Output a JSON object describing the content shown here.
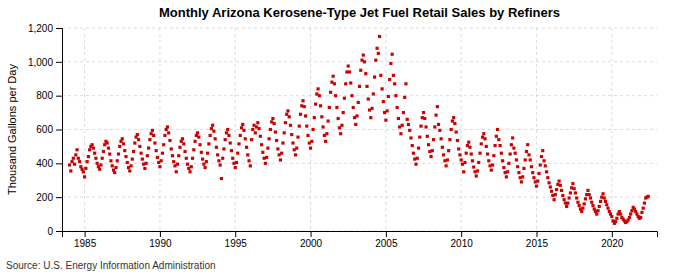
{
  "chart_data": {
    "type": "scatter",
    "title": "Monthly Arizona Kerosene-Type Jet Fuel Retail Sales by Refiners",
    "ylabel": "Thousand Gallons per Day",
    "annotations": [
      "Source: U.S. Energy Information Administration"
    ],
    "color": "#CC0000",
    "marker": "square",
    "grid": true,
    "xlim": [
      1983.5,
      2023.0
    ],
    "ylim": [
      0,
      1200
    ],
    "xticks": [
      1985,
      1990,
      1995,
      2000,
      2005,
      2010,
      2015,
      2020
    ],
    "yticks": [
      0,
      200,
      400,
      600,
      800,
      {
        "value": 1000,
        "label": "1,000"
      },
      {
        "value": 1200,
        "label": "1,200"
      }
    ],
    "x": [
      1984.0,
      1984.083,
      1984.167,
      1984.25,
      1984.333,
      1984.417,
      1984.5,
      1984.583,
      1984.667,
      1984.75,
      1984.833,
      1984.917,
      1985.0,
      1985.083,
      1985.167,
      1985.25,
      1985.333,
      1985.417,
      1985.5,
      1985.583,
      1985.667,
      1985.75,
      1985.833,
      1985.917,
      1986.0,
      1986.083,
      1986.167,
      1986.25,
      1986.333,
      1986.417,
      1986.5,
      1986.583,
      1986.667,
      1986.75,
      1986.833,
      1986.917,
      1987.0,
      1987.083,
      1987.167,
      1987.25,
      1987.333,
      1987.417,
      1987.5,
      1987.583,
      1987.667,
      1987.75,
      1987.833,
      1987.917,
      1988.0,
      1988.083,
      1988.167,
      1988.25,
      1988.333,
      1988.417,
      1988.5,
      1988.583,
      1988.667,
      1988.75,
      1988.833,
      1988.917,
      1989.0,
      1989.083,
      1989.167,
      1989.25,
      1989.333,
      1989.417,
      1989.5,
      1989.583,
      1989.667,
      1989.75,
      1989.833,
      1989.917,
      1990.0,
      1990.083,
      1990.167,
      1990.25,
      1990.333,
      1990.417,
      1990.5,
      1990.583,
      1990.667,
      1990.75,
      1990.833,
      1990.917,
      1991.0,
      1991.083,
      1991.167,
      1991.25,
      1991.333,
      1991.417,
      1991.5,
      1991.583,
      1991.667,
      1991.75,
      1991.833,
      1991.917,
      1992.0,
      1992.083,
      1992.167,
      1992.25,
      1992.333,
      1992.417,
      1992.5,
      1992.583,
      1992.667,
      1992.75,
      1992.833,
      1992.917,
      1993.0,
      1993.083,
      1993.167,
      1993.25,
      1993.333,
      1993.417,
      1993.5,
      1993.583,
      1993.667,
      1993.75,
      1993.833,
      1993.917,
      1994.0,
      1994.083,
      1994.167,
      1994.25,
      1994.333,
      1994.417,
      1994.5,
      1994.583,
      1994.667,
      1994.75,
      1994.833,
      1994.917,
      1995.0,
      1995.083,
      1995.167,
      1995.25,
      1995.333,
      1995.417,
      1995.5,
      1995.583,
      1995.667,
      1995.75,
      1995.833,
      1995.917,
      1996.0,
      1996.083,
      1996.167,
      1996.25,
      1996.333,
      1996.417,
      1996.5,
      1996.583,
      1996.667,
      1996.75,
      1996.833,
      1996.917,
      1997.0,
      1997.083,
      1997.167,
      1997.25,
      1997.333,
      1997.417,
      1997.5,
      1997.583,
      1997.667,
      1997.75,
      1997.833,
      1997.917,
      1998.0,
      1998.083,
      1998.167,
      1998.25,
      1998.333,
      1998.417,
      1998.5,
      1998.583,
      1998.667,
      1998.75,
      1998.833,
      1998.917,
      1999.0,
      1999.083,
      1999.167,
      1999.25,
      1999.333,
      1999.417,
      1999.5,
      1999.583,
      1999.667,
      1999.75,
      1999.833,
      1999.917,
      2000.0,
      2000.083,
      2000.167,
      2000.25,
      2000.333,
      2000.417,
      2000.5,
      2000.583,
      2000.667,
      2000.75,
      2000.833,
      2000.917,
      2001.0,
      2001.083,
      2001.167,
      2001.25,
      2001.333,
      2001.417,
      2001.5,
      2001.583,
      2001.667,
      2001.75,
      2001.833,
      2001.917,
      2002.0,
      2002.083,
      2002.167,
      2002.25,
      2002.333,
      2002.417,
      2002.5,
      2002.583,
      2002.667,
      2002.75,
      2002.833,
      2002.917,
      2003.0,
      2003.083,
      2003.167,
      2003.25,
      2003.333,
      2003.417,
      2003.5,
      2003.583,
      2003.667,
      2003.75,
      2003.833,
      2003.917,
      2004.0,
      2004.083,
      2004.167,
      2004.25,
      2004.333,
      2004.417,
      2004.5,
      2004.583,
      2004.667,
      2004.75,
      2004.833,
      2004.917,
      2005.0,
      2005.083,
      2005.167,
      2005.25,
      2005.333,
      2005.417,
      2005.5,
      2005.583,
      2005.667,
      2005.75,
      2005.833,
      2005.917,
      2006.0,
      2006.083,
      2006.167,
      2006.25,
      2006.333,
      2006.417,
      2006.5,
      2006.583,
      2006.667,
      2006.75,
      2006.833,
      2006.917,
      2007.0,
      2007.083,
      2007.167,
      2007.25,
      2007.333,
      2007.417,
      2007.5,
      2007.583,
      2007.667,
      2007.75,
      2007.833,
      2007.917,
      2008.0,
      2008.083,
      2008.167,
      2008.25,
      2008.333,
      2008.417,
      2008.5,
      2008.583,
      2008.667,
      2008.75,
      2008.833,
      2008.917,
      2009.0,
      2009.083,
      2009.167,
      2009.25,
      2009.333,
      2009.417,
      2009.5,
      2009.583,
      2009.667,
      2009.75,
      2009.833,
      2009.917,
      2010.0,
      2010.083,
      2010.167,
      2010.25,
      2010.333,
      2010.417,
      2010.5,
      2010.583,
      2010.667,
      2010.75,
      2010.833,
      2010.917,
      2011.0,
      2011.083,
      2011.167,
      2011.25,
      2011.333,
      2011.417,
      2011.5,
      2011.583,
      2011.667,
      2011.75,
      2011.833,
      2011.917,
      2012.0,
      2012.083,
      2012.167,
      2012.25,
      2012.333,
      2012.417,
      2012.5,
      2012.583,
      2012.667,
      2012.75,
      2012.833,
      2012.917,
      2013.0,
      2013.083,
      2013.167,
      2013.25,
      2013.333,
      2013.417,
      2013.5,
      2013.583,
      2013.667,
      2013.75,
      2013.833,
      2013.917,
      2014.0,
      2014.083,
      2014.167,
      2014.25,
      2014.333,
      2014.417,
      2014.5,
      2014.583,
      2014.667,
      2014.75,
      2014.833,
      2014.917,
      2015.0,
      2015.083,
      2015.167,
      2015.25,
      2015.333,
      2015.417,
      2015.5,
      2015.583,
      2015.667,
      2015.75,
      2015.833,
      2015.917,
      2016.0,
      2016.083,
      2016.167,
      2016.25,
      2016.333,
      2016.417,
      2016.5,
      2016.583,
      2016.667,
      2016.75,
      2016.833,
      2016.917,
      2017.0,
      2017.083,
      2017.167,
      2017.25,
      2017.333,
      2017.417,
      2017.5,
      2017.583,
      2017.667,
      2017.75,
      2017.833,
      2017.917,
      2018.0,
      2018.083,
      2018.167,
      2018.25,
      2018.333,
      2018.417,
      2018.5,
      2018.583,
      2018.667,
      2018.75,
      2018.833,
      2018.917,
      2019.0,
      2019.083,
      2019.167,
      2019.25,
      2019.333,
      2019.417,
      2019.5,
      2019.583,
      2019.667,
      2019.75,
      2019.833,
      2019.917,
      2020.0,
      2020.083,
      2020.167,
      2020.25,
      2020.333,
      2020.417,
      2020.5,
      2020.583,
      2020.667,
      2020.75,
      2020.833,
      2020.917,
      2021.0,
      2021.083,
      2021.167,
      2021.25,
      2021.333,
      2021.417,
      2021.5,
      2021.583,
      2021.667,
      2021.75,
      2021.833,
      2021.917,
      2022.0,
      2022.083,
      2022.167,
      2022.25,
      2022.333,
      2022.417
    ],
    "values": [
      390,
      355,
      410,
      430,
      395,
      450,
      480,
      430,
      410,
      380,
      365,
      350,
      320,
      370,
      410,
      440,
      480,
      500,
      510,
      490,
      460,
      430,
      400,
      380,
      365,
      390,
      430,
      470,
      510,
      530,
      520,
      490,
      455,
      415,
      385,
      360,
      345,
      375,
      415,
      455,
      500,
      530,
      545,
      515,
      475,
      440,
      405,
      375,
      355,
      385,
      425,
      470,
      520,
      555,
      570,
      540,
      500,
      460,
      425,
      395,
      370,
      400,
      445,
      490,
      540,
      575,
      595,
      565,
      520,
      475,
      435,
      405,
      380,
      415,
      460,
      510,
      565,
      600,
      615,
      580,
      535,
      485,
      445,
      410,
      385,
      350,
      395,
      445,
      495,
      530,
      545,
      515,
      470,
      430,
      395,
      370,
      350,
      380,
      430,
      480,
      530,
      565,
      580,
      555,
      510,
      465,
      425,
      395,
      375,
      410,
      460,
      515,
      565,
      605,
      625,
      590,
      545,
      495,
      450,
      415,
      390,
      310,
      430,
      485,
      540,
      580,
      600,
      565,
      520,
      475,
      430,
      400,
      375,
      405,
      460,
      515,
      565,
      610,
      630,
      595,
      545,
      495,
      450,
      415,
      385,
      540,
      600,
      625,
      580,
      615,
      640,
      605,
      560,
      510,
      465,
      430,
      400,
      435,
      490,
      545,
      600,
      645,
      665,
      635,
      585,
      535,
      485,
      450,
      420,
      460,
      520,
      580,
      640,
      690,
      710,
      675,
      625,
      570,
      520,
      480,
      450,
      490,
      555,
      620,
      690,
      740,
      770,
      735,
      680,
      620,
      565,
      520,
      490,
      530,
      600,
      670,
      750,
      810,
      840,
      800,
      740,
      675,
      615,
      565,
      530,
      575,
      650,
      730,
      820,
      880,
      915,
      870,
      800,
      730,
      665,
      610,
      575,
      625,
      700,
      785,
      870,
      940,
      975,
      940,
      875,
      800,
      730,
      670,
      630,
      680,
      760,
      855,
      950,
      1010,
      1040,
      1000,
      930,
      855,
      780,
      715,
      670,
      725,
      810,
      910,
      1010,
      1080,
      1050,
      1150,
      920,
      840,
      765,
      700,
      655,
      710,
      795,
      895,
      990,
      1045,
      920,
      870,
      800,
      730,
      665,
      615,
      575,
      625,
      700,
      790,
      870,
      660,
      630,
      595,
      550,
      505,
      460,
      425,
      395,
      430,
      490,
      555,
      620,
      670,
      700,
      665,
      615,
      560,
      510,
      470,
      440,
      475,
      540,
      615,
      685,
      735,
      630,
      595,
      545,
      495,
      450,
      415,
      385,
      420,
      475,
      540,
      600,
      650,
      670,
      635,
      585,
      535,
      485,
      450,
      420,
      395,
      350,
      405,
      460,
      505,
      525,
      495,
      455,
      415,
      378,
      350,
      325,
      355,
      405,
      460,
      515,
      555,
      575,
      545,
      500,
      455,
      415,
      385,
      360,
      390,
      445,
      505,
      560,
      600,
      540,
      505,
      460,
      415,
      375,
      345,
      320,
      350,
      400,
      455,
      510,
      550,
      490,
      460,
      420,
      380,
      345,
      315,
      290,
      320,
      370,
      420,
      470,
      510,
      450,
      420,
      380,
      345,
      315,
      290,
      265,
      295,
      340,
      390,
      440,
      475,
      415,
      385,
      350,
      315,
      285,
      260,
      235,
      210,
      185,
      215,
      245,
      275,
      295,
      270,
      240,
      210,
      185,
      165,
      145,
      165,
      195,
      225,
      255,
      280,
      250,
      225,
      195,
      170,
      150,
      130,
      115,
      135,
      160,
      190,
      215,
      240,
      215,
      195,
      170,
      150,
      130,
      115,
      100,
      120,
      145,
      175,
      200,
      220,
      195,
      175,
      155,
      135,
      115,
      100,
      85,
      60,
      45,
      55,
      75,
      100,
      115,
      100,
      80,
      70,
      60,
      50,
      55,
      65,
      80,
      100,
      120,
      140,
      130,
      115,
      100,
      85,
      75,
      80,
      110,
      135,
      165,
      195,
      200,
      205
    ]
  }
}
